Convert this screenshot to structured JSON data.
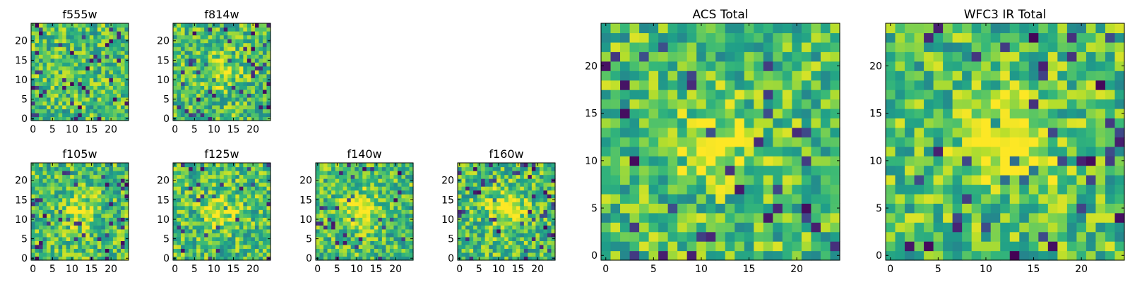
{
  "chart_data": [
    {
      "type": "heatmap",
      "title": "f555w",
      "colormap": "viridis",
      "seed": 11,
      "grid": [
        25,
        25
      ],
      "xlim": [
        0,
        25
      ],
      "ylim": [
        0,
        25
      ],
      "xticks": [
        "0",
        "5",
        "10",
        "15",
        "20"
      ],
      "yticks": [
        "0",
        "5",
        "10",
        "15",
        "20"
      ],
      "hot_center": null,
      "hot_strength": 0
    },
    {
      "type": "heatmap",
      "title": "f814w",
      "colormap": "viridis",
      "seed": 23,
      "grid": [
        25,
        25
      ],
      "xlim": [
        0,
        25
      ],
      "ylim": [
        0,
        25
      ],
      "xticks": [
        "0",
        "5",
        "10",
        "15",
        "20"
      ],
      "yticks": [
        "0",
        "5",
        "10",
        "15",
        "20"
      ],
      "hot_center": [
        11,
        12
      ],
      "hot_strength": 0.25
    },
    {
      "type": "heatmap",
      "title": "f105w",
      "colormap": "viridis",
      "seed": 37,
      "grid": [
        25,
        25
      ],
      "xlim": [
        0,
        25
      ],
      "ylim": [
        0,
        25
      ],
      "xticks": [
        "0",
        "5",
        "10",
        "15",
        "20"
      ],
      "yticks": [
        "0",
        "5",
        "10",
        "15",
        "20"
      ],
      "hot_center": [
        12,
        12
      ],
      "hot_strength": 0.2
    },
    {
      "type": "heatmap",
      "title": "f125w",
      "colormap": "viridis",
      "seed": 41,
      "grid": [
        25,
        25
      ],
      "xlim": [
        0,
        25
      ],
      "ylim": [
        0,
        25
      ],
      "xticks": [
        "0",
        "5",
        "10",
        "15",
        "20"
      ],
      "yticks": [
        "0",
        "5",
        "10",
        "15",
        "20"
      ],
      "hot_center": [
        12,
        12
      ],
      "hot_strength": 0.25
    },
    {
      "type": "heatmap",
      "title": "f140w",
      "colormap": "viridis",
      "seed": 53,
      "grid": [
        25,
        25
      ],
      "xlim": [
        0,
        25
      ],
      "ylim": [
        0,
        25
      ],
      "xticks": [
        "0",
        "5",
        "10",
        "15",
        "20"
      ],
      "yticks": [
        "0",
        "5",
        "10",
        "15",
        "20"
      ],
      "hot_center": [
        11,
        12
      ],
      "hot_strength": 0.35
    },
    {
      "type": "heatmap",
      "title": "f160w",
      "colormap": "viridis",
      "seed": 67,
      "grid": [
        25,
        25
      ],
      "xlim": [
        0,
        25
      ],
      "ylim": [
        0,
        25
      ],
      "xticks": [
        "0",
        "5",
        "10",
        "15",
        "20"
      ],
      "yticks": [
        "0",
        "5",
        "10",
        "15",
        "20"
      ],
      "hot_center": [
        12,
        13
      ],
      "hot_strength": 0.35
    },
    {
      "type": "heatmap",
      "title": "ACS Total",
      "colormap": "viridis",
      "seed": 79,
      "grid": [
        25,
        25
      ],
      "xlim": [
        0,
        25
      ],
      "ylim": [
        0,
        25
      ],
      "xticks": [
        "0",
        "5",
        "10",
        "15",
        "20"
      ],
      "yticks": [
        "0",
        "5",
        "10",
        "15",
        "20"
      ],
      "hot_center": [
        11,
        12
      ],
      "hot_strength": 0.2
    },
    {
      "type": "heatmap",
      "title": "WFC3 IR Total",
      "colormap": "viridis",
      "seed": 97,
      "grid": [
        25,
        25
      ],
      "xlim": [
        0,
        25
      ],
      "ylim": [
        0,
        25
      ],
      "xticks": [
        "0",
        "5",
        "10",
        "15",
        "20"
      ],
      "yticks": [
        "0",
        "5",
        "10",
        "15",
        "20"
      ],
      "hot_center": [
        12,
        12
      ],
      "hot_strength": 0.45
    }
  ]
}
